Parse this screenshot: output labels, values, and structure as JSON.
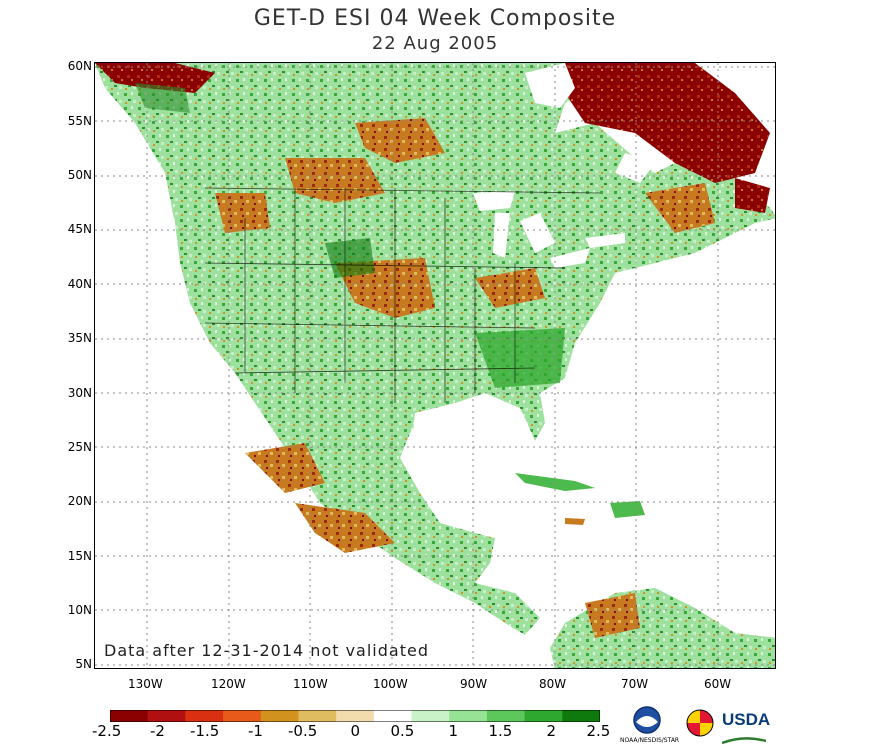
{
  "title": "GET-D ESI 04 Week Composite",
  "subtitle": "22 Aug 2005",
  "note": "Data after 12-31-2014 not validated",
  "axes": {
    "lat_labels": [
      "60N",
      "55N",
      "50N",
      "45N",
      "40N",
      "35N",
      "30N",
      "25N",
      "20N",
      "15N",
      "10N",
      "5N"
    ],
    "lon_labels": [
      "130W",
      "120W",
      "110W",
      "100W",
      "90W",
      "80W",
      "70W",
      "60W"
    ]
  },
  "colorbar": {
    "labels": [
      "-2.5",
      "-2",
      "-1.5",
      "-1",
      "-0.5",
      "0",
      "0.5",
      "1",
      "1.5",
      "2",
      "2.5"
    ],
    "colors": [
      "#8b0000",
      "#b01010",
      "#d83010",
      "#e85a1a",
      "#d2921e",
      "#e0bc60",
      "#f2dcae",
      "#ffffff",
      "#c9f2c9",
      "#96e396",
      "#5cc85c",
      "#2ea82e",
      "#0e7a0e"
    ]
  },
  "logos": {
    "noaa_text": "NOAA/NESDIS/STAR",
    "usda_text": "USDA"
  },
  "map_colors": {
    "ocean": "#ffffff",
    "dry_severe": "#8b0000",
    "dry_moderate": "#c87a20",
    "near_normal": "#d8f5d8",
    "wet": "#4cba4c",
    "wet_strong": "#0e7a0e"
  }
}
